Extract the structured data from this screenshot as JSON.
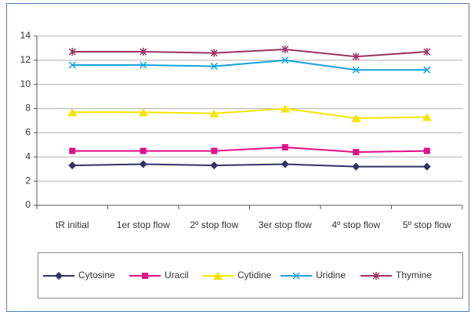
{
  "chart_data": {
    "type": "line",
    "categories": [
      "tR initial",
      "1er stop flow",
      "2º stop flow",
      "3er stop flow",
      "4º stop flow",
      "5º stop flow"
    ],
    "series": [
      {
        "name": "Cytosine",
        "color": "#333366",
        "marker": "diamond",
        "values": [
          3.3,
          3.4,
          3.3,
          3.4,
          3.2,
          3.2
        ]
      },
      {
        "name": "Uracil",
        "color": "#e0108a",
        "marker": "square",
        "values": [
          4.5,
          4.5,
          4.5,
          4.8,
          4.4,
          4.5
        ]
      },
      {
        "name": "Cytidine",
        "color": "#f5e400",
        "marker": "triangle",
        "values": [
          7.7,
          7.7,
          7.6,
          8.0,
          7.2,
          7.3
        ]
      },
      {
        "name": "Uridine",
        "color": "#15a3dc",
        "marker": "x",
        "values": [
          11.6,
          11.6,
          11.5,
          12.0,
          11.2,
          11.2
        ]
      },
      {
        "name": "Thymine",
        "color": "#993366",
        "marker": "asterisk",
        "values": [
          12.7,
          12.7,
          12.6,
          12.9,
          12.3,
          12.7
        ]
      }
    ],
    "ylim": [
      0,
      14
    ],
    "yticks": [
      0,
      2,
      4,
      6,
      8,
      10,
      12,
      14
    ],
    "grid": true,
    "legend": "bottom"
  }
}
